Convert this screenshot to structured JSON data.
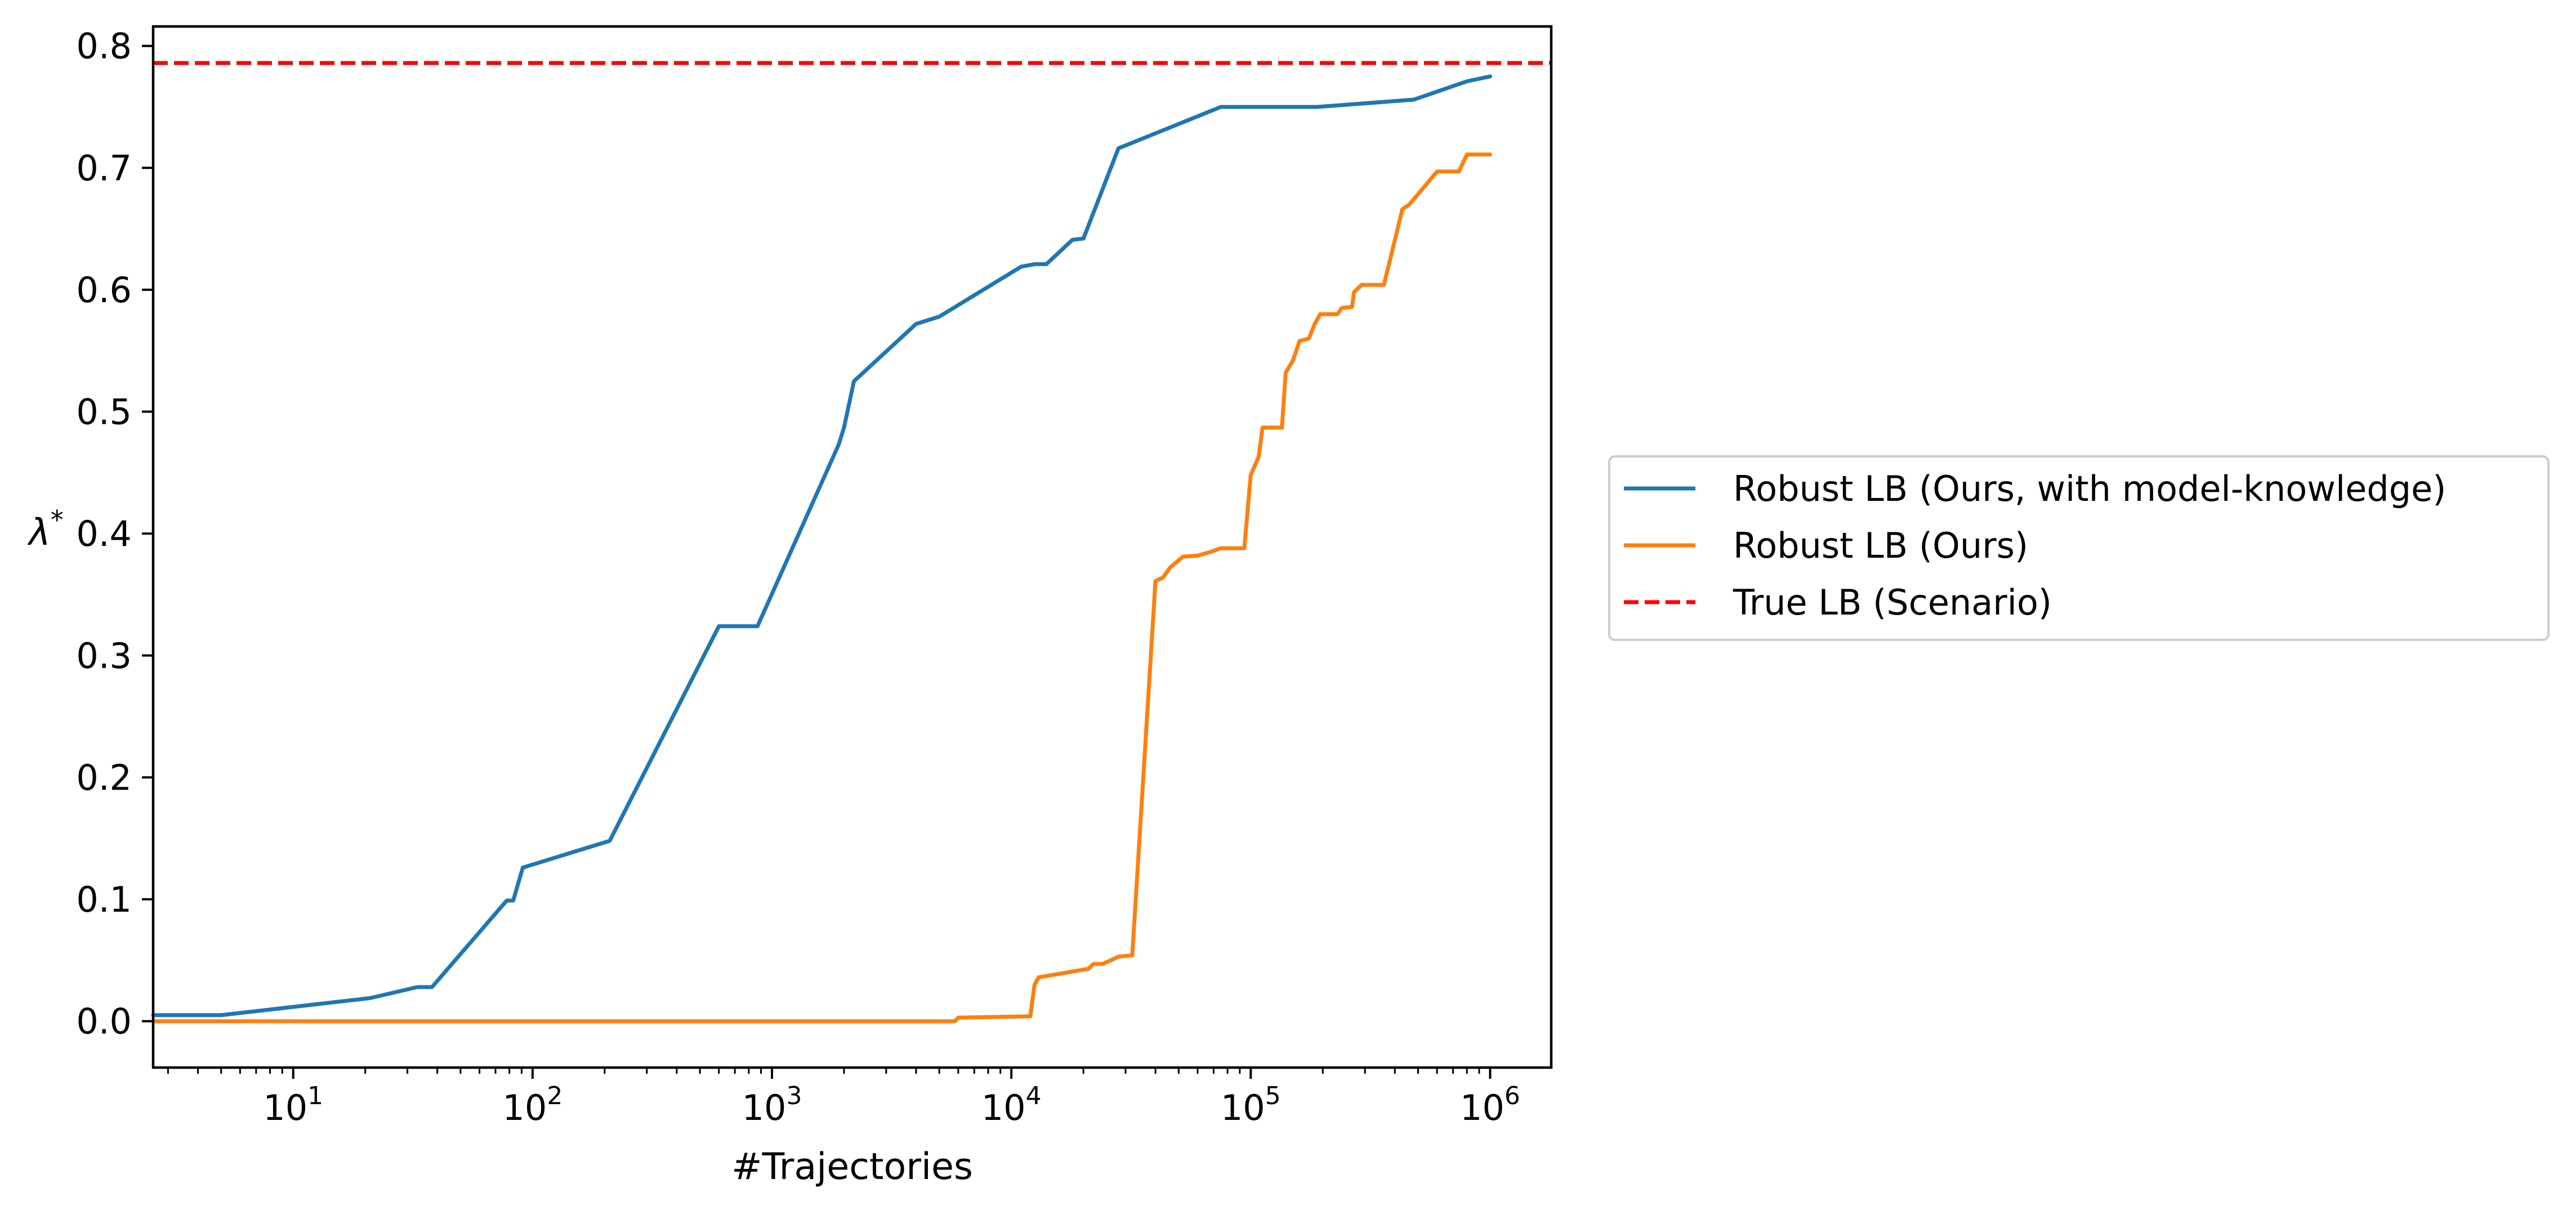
{
  "chart_data": {
    "type": "line",
    "xlabel": "#Trajectories",
    "ylabel": "λ",
    "ylabel_superscript": "*",
    "xscale": "log",
    "xlim": [
      2.6,
      1800000
    ],
    "ylim": [
      -0.038,
      0.816
    ],
    "grid": false,
    "legend_position": "outside-right",
    "xticks": [
      {
        "value": 10,
        "base": "10",
        "exp": "1"
      },
      {
        "value": 100,
        "base": "10",
        "exp": "2"
      },
      {
        "value": 1000,
        "base": "10",
        "exp": "3"
      },
      {
        "value": 10000,
        "base": "10",
        "exp": "4"
      },
      {
        "value": 100000,
        "base": "10",
        "exp": "5"
      },
      {
        "value": 1000000,
        "base": "10",
        "exp": "6"
      }
    ],
    "yticks": [
      {
        "value": 0.0,
        "label": "0.0"
      },
      {
        "value": 0.1,
        "label": "0.1"
      },
      {
        "value": 0.2,
        "label": "0.2"
      },
      {
        "value": 0.3,
        "label": "0.3"
      },
      {
        "value": 0.4,
        "label": "0.4"
      },
      {
        "value": 0.5,
        "label": "0.5"
      },
      {
        "value": 0.6,
        "label": "0.6"
      },
      {
        "value": 0.7,
        "label": "0.7"
      },
      {
        "value": 0.8,
        "label": "0.8"
      }
    ],
    "series": [
      {
        "name": "Robust LB (Ours, with model-knowledge)",
        "color": "#1f77b4",
        "style": "solid",
        "points": [
          [
            2.6,
            0.005
          ],
          [
            5,
            0.005
          ],
          [
            21,
            0.019
          ],
          [
            33,
            0.028
          ],
          [
            38,
            0.028
          ],
          [
            78,
            0.099
          ],
          [
            83,
            0.099
          ],
          [
            91,
            0.126
          ],
          [
            210,
            0.148
          ],
          [
            600,
            0.324
          ],
          [
            870,
            0.324
          ],
          [
            1900,
            0.473
          ],
          [
            2000,
            0.487
          ],
          [
            2200,
            0.525
          ],
          [
            4000,
            0.572
          ],
          [
            5000,
            0.578
          ],
          [
            11000,
            0.619
          ],
          [
            12500,
            0.621
          ],
          [
            14000,
            0.621
          ],
          [
            18000,
            0.641
          ],
          [
            20000,
            0.642
          ],
          [
            28000,
            0.716
          ],
          [
            75000,
            0.75
          ],
          [
            190000,
            0.75
          ],
          [
            480000,
            0.756
          ],
          [
            800000,
            0.771
          ],
          [
            1000000,
            0.775
          ]
        ]
      },
      {
        "name": "Robust LB (Ours)",
        "color": "#ff7f0e",
        "style": "solid",
        "points": [
          [
            2.6,
            0.0
          ],
          [
            5800,
            0.0
          ],
          [
            6000,
            0.003
          ],
          [
            12000,
            0.004
          ],
          [
            12500,
            0.03
          ],
          [
            13000,
            0.036
          ],
          [
            21000,
            0.043
          ],
          [
            22000,
            0.047
          ],
          [
            24000,
            0.047
          ],
          [
            26000,
            0.05
          ],
          [
            28000,
            0.053
          ],
          [
            32000,
            0.054
          ],
          [
            40000,
            0.361
          ],
          [
            43000,
            0.364
          ],
          [
            46000,
            0.372
          ],
          [
            52000,
            0.381
          ],
          [
            60000,
            0.382
          ],
          [
            68000,
            0.385
          ],
          [
            75000,
            0.388
          ],
          [
            94000,
            0.388
          ],
          [
            100000,
            0.448
          ],
          [
            108000,
            0.463
          ],
          [
            112000,
            0.487
          ],
          [
            135000,
            0.487
          ],
          [
            140000,
            0.532
          ],
          [
            150000,
            0.542
          ],
          [
            160000,
            0.558
          ],
          [
            175000,
            0.56
          ],
          [
            185000,
            0.572
          ],
          [
            195000,
            0.58
          ],
          [
            230000,
            0.58
          ],
          [
            240000,
            0.585
          ],
          [
            265000,
            0.586
          ],
          [
            270000,
            0.598
          ],
          [
            290000,
            0.604
          ],
          [
            360000,
            0.604
          ],
          [
            430000,
            0.666
          ],
          [
            460000,
            0.67
          ],
          [
            600000,
            0.697
          ],
          [
            740000,
            0.697
          ],
          [
            800000,
            0.711
          ],
          [
            1000000,
            0.711
          ]
        ]
      },
      {
        "name": "True LB (Scenario)",
        "color": "#ff0000",
        "style": "dashed",
        "horizontal": true,
        "y": 0.786
      }
    ]
  }
}
